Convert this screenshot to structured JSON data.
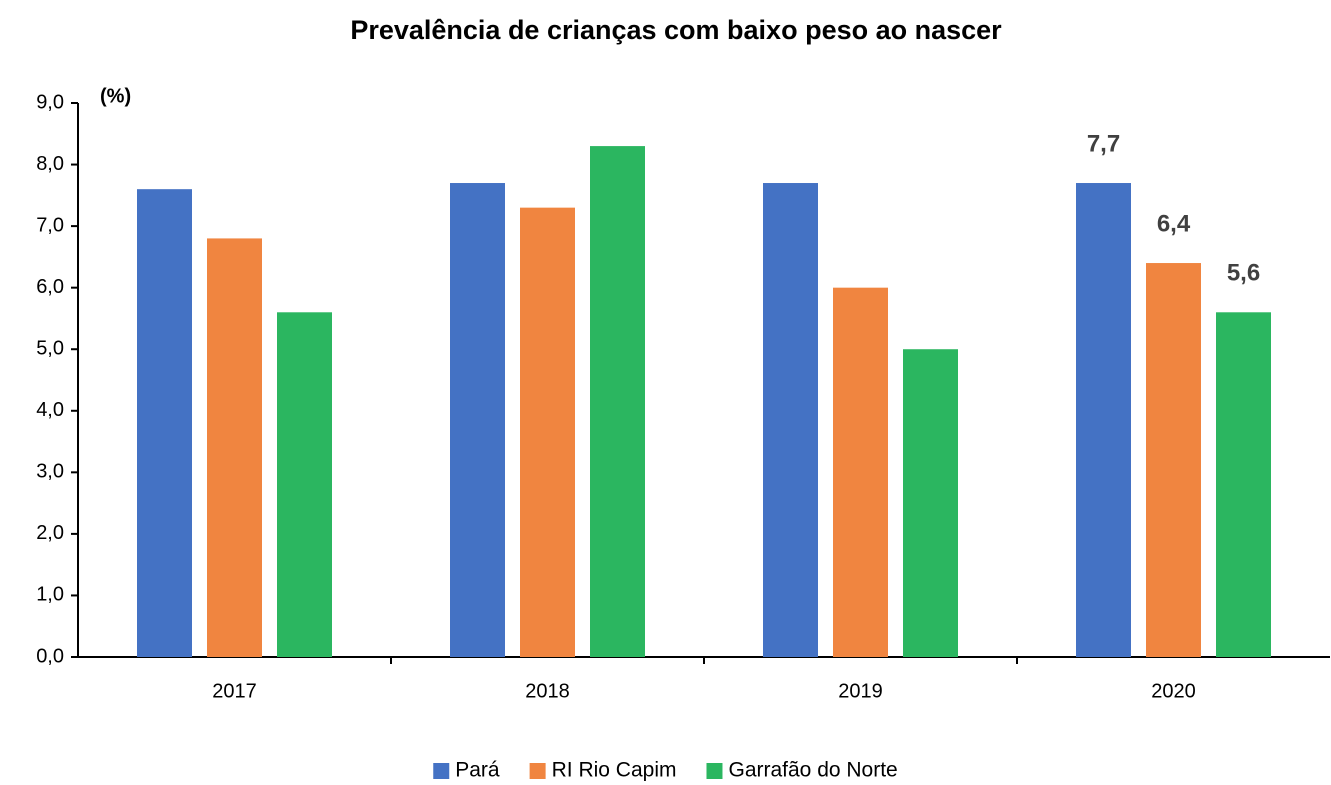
{
  "chart_data": {
    "type": "bar",
    "title": "Prevalência de crianças com baixo peso ao nascer",
    "y_label": "(%)",
    "categories": [
      "2017",
      "2018",
      "2019",
      "2020"
    ],
    "series": [
      {
        "name": "Pará",
        "color": "#4472c4",
        "values": [
          7.6,
          7.7,
          7.7,
          7.7
        ],
        "value_labels": [
          null,
          null,
          null,
          "7,7"
        ]
      },
      {
        "name": "RI Rio Capim",
        "color": "#f08540",
        "values": [
          6.8,
          7.3,
          6.0,
          6.4
        ],
        "value_labels": [
          null,
          null,
          null,
          "6,4"
        ]
      },
      {
        "name": "Garrafão do Norte",
        "color": "#2bb660",
        "values": [
          5.6,
          8.3,
          5.0,
          5.6
        ],
        "value_labels": [
          null,
          null,
          null,
          "5,6"
        ]
      }
    ],
    "ylim": [
      0,
      9
    ],
    "yticks": [
      {
        "value": 0,
        "label": "0,0"
      },
      {
        "value": 1,
        "label": "1,0"
      },
      {
        "value": 2,
        "label": "2,0"
      },
      {
        "value": 3,
        "label": "3,0"
      },
      {
        "value": 4,
        "label": "4,0"
      },
      {
        "value": 5,
        "label": "5,0"
      },
      {
        "value": 6,
        "label": "6,0"
      },
      {
        "value": 7,
        "label": "7,0"
      },
      {
        "value": 8,
        "label": "8,0"
      },
      {
        "value": 9,
        "label": "9,0"
      }
    ],
    "grid": false,
    "legend": "bottom"
  }
}
